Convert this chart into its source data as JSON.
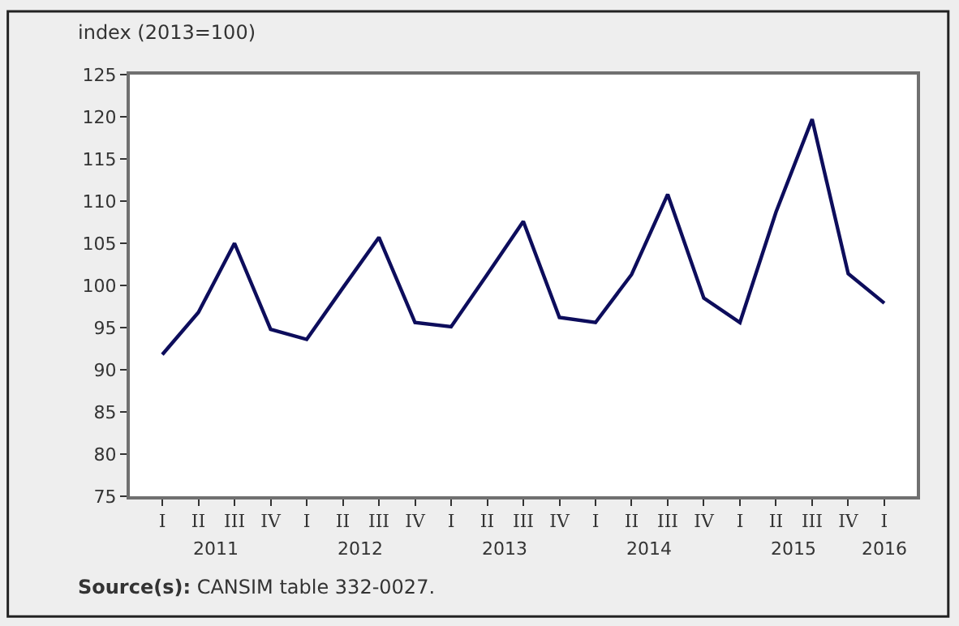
{
  "chart_data": {
    "type": "line",
    "ylabel": "index (2013=100)",
    "categories": [
      "I",
      "II",
      "III",
      "IV",
      "I",
      "II",
      "III",
      "IV",
      "I",
      "II",
      "III",
      "IV",
      "I",
      "II",
      "III",
      "IV",
      "I",
      "II",
      "III",
      "IV",
      "I"
    ],
    "series": [
      {
        "color": "#0d0d5c",
        "values": [
          91.8,
          96.8,
          105.0,
          94.8,
          93.6,
          99.7,
          105.7,
          95.6,
          95.1,
          101.3,
          107.6,
          96.2,
          95.6,
          101.3,
          110.8,
          98.5,
          95.6,
          108.7,
          119.7,
          101.4,
          97.9
        ]
      }
    ],
    "ylim": [
      75,
      125
    ],
    "yticks": [
      75,
      80,
      85,
      90,
      95,
      100,
      105,
      110,
      115,
      120,
      125
    ],
    "legend": false,
    "marker": "none",
    "line_style": "solid",
    "annotations": [
      "2011",
      "2012",
      "2013",
      "2014",
      "2015",
      "2016",
      "Source(s): CANSIM table 332-0027."
    ]
  }
}
